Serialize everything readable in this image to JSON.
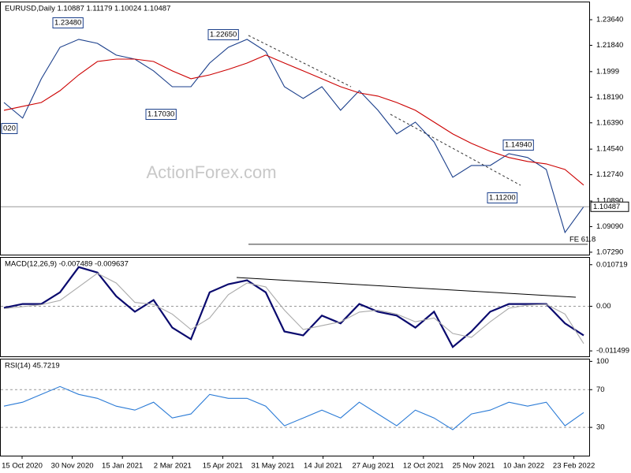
{
  "watermark": "ActionForex.com",
  "chart_data": [
    {
      "type": "line",
      "title": "EURUSD,Daily 1.10887 1.11179 1.10024 1.10487",
      "ylim": [
        1.0712,
        1.2486
      ],
      "yticks": [
        {
          "value": 1.2364,
          "label": "1.23640"
        },
        {
          "value": 1.2184,
          "label": "1.21840"
        },
        1.1999,
        {
          "value": 1.1819,
          "label": "1.18190"
        },
        {
          "value": 1.1639,
          "label": "1.16390"
        },
        {
          "value": 1.1454,
          "label": "1.14540"
        },
        {
          "value": 1.1274,
          "label": "1.12740"
        },
        {
          "value": 1.1089,
          "label": "1.10890"
        },
        {
          "value": 1.0909,
          "label": "1.09090"
        },
        {
          "value": 1.0729,
          "label": "1.07290"
        }
      ],
      "current_price": 1.10487,
      "fe_level": 1.0785,
      "annotations": [
        "1.23480",
        "1.22650",
        "1.17030",
        "1.14940",
        "1.11200",
        "020",
        "FE 61.8"
      ],
      "series": [
        {
          "color": "#1b3f8b",
          "values": [
            1.1782,
            1.1672,
            1.1949,
            1.217,
            1.2226,
            1.2198,
            1.2115,
            1.2087,
            1.2004,
            1.1893,
            1.1893,
            1.2059,
            1.217,
            1.2226,
            1.2142,
            1.1893,
            1.181,
            1.1893,
            1.1727,
            1.1865,
            1.1727,
            1.1561,
            1.1644,
            1.1505,
            1.1256,
            1.1339,
            1.1339,
            1.1422,
            1.1395,
            1.1311,
            1.0868,
            1.1049
          ]
        },
        {
          "color": "#cc0000",
          "values": [
            1.1727,
            1.1755,
            1.1782,
            1.1865,
            1.1976,
            1.207,
            1.2087,
            1.2087,
            1.207,
            1.2004,
            1.1949,
            1.1976,
            1.2015,
            1.2059,
            1.2115,
            1.2059,
            1.2004,
            1.1949,
            1.1893,
            1.1849,
            1.1827,
            1.1782,
            1.1727,
            1.1644,
            1.1561,
            1.1494,
            1.1439,
            1.1395,
            1.1367,
            1.135,
            1.1311,
            1.1201
          ]
        }
      ]
    },
    {
      "type": "line",
      "title": "MACD(12,26,9) -0.007489 -0.009637",
      "ylim": [
        -0.0129,
        0.0125
      ],
      "yticks": [
        0.010719,
        {
          "value": 0,
          "label": "0.00"
        },
        -0.011499
      ],
      "series": [
        {
          "color": "#0a0a6e",
          "values": [
            -0.0004,
            0.0006,
            0.0006,
            0.0036,
            0.0101,
            0.0087,
            0.0026,
            -0.0014,
            0.0016,
            -0.0055,
            -0.0085,
            0.0036,
            0.0057,
            0.0067,
            0.0036,
            -0.0065,
            -0.0075,
            -0.0024,
            -0.0044,
            0.0006,
            -0.0014,
            -0.0024,
            -0.0055,
            -0.0014,
            -0.0105,
            -0.0065,
            -0.0014,
            0.0006,
            0.0006,
            0.0006,
            -0.0044,
            -0.0075
          ]
        },
        {
          "color": "#aaaaaa",
          "values": [
            -0.0006,
            -0.0001,
            0.0004,
            0.0015,
            0.005,
            0.0085,
            0.006,
            0.001,
            0.0005,
            -0.002,
            -0.006,
            -0.003,
            0.003,
            0.006,
            0.005,
            -0.001,
            -0.006,
            -0.005,
            -0.004,
            -0.0015,
            -0.001,
            -0.002,
            -0.004,
            -0.003,
            -0.007,
            -0.008,
            -0.004,
            -0.0005,
            0.0003,
            0.0005,
            -0.002,
            -0.0096
          ]
        }
      ]
    },
    {
      "type": "line",
      "title": "RSI(14) 45.7219",
      "ylim": [
        0,
        102
      ],
      "yticks": [
        100,
        70,
        30
      ],
      "xtick_labels": [
        "15 Oct 2020",
        "30 Nov 2020",
        "15 Jan 2021",
        "2 Mar 2021",
        "15 Apr 2021",
        "31 May 2021",
        "14 Jul 2021",
        "27 Aug 2021",
        "12 Oct 2021",
        "25 Nov 2021",
        "10 Jan 2022",
        "23 Feb 2022"
      ],
      "series": [
        {
          "color": "#2b7bd6",
          "values": [
            52.5,
            56.7,
            65,
            73.3,
            65,
            60.8,
            52.5,
            48.3,
            56.7,
            40,
            44.2,
            65,
            60.8,
            60.8,
            52.5,
            31.7,
            40,
            48.3,
            40,
            56.7,
            44.2,
            31.7,
            48.3,
            40,
            27.5,
            44.2,
            48.3,
            56.7,
            52.5,
            56.7,
            31.7,
            45.7
          ]
        }
      ]
    }
  ]
}
